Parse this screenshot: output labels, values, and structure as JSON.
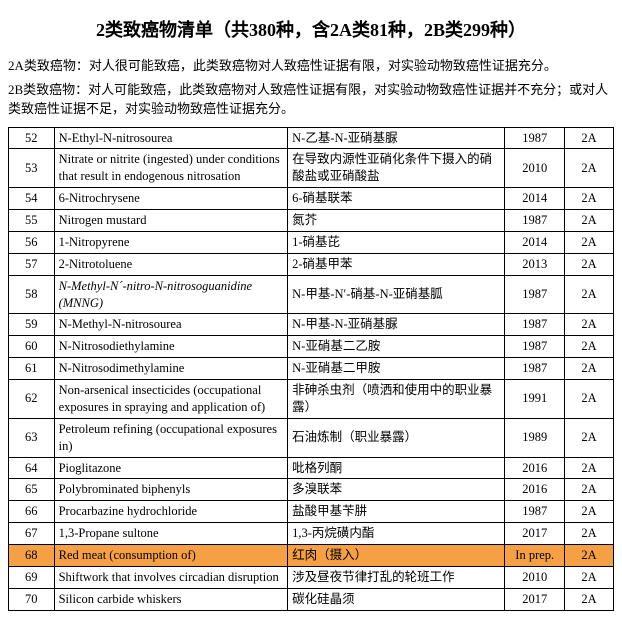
{
  "title": "2类致癌物清单（共380种，含2A类81种，2B类299种）",
  "intro": [
    "2A类致癌物：对人很可能致癌，此类致癌物对人致癌性证据有限，对实验动物致癌性证据充分。",
    "2B类致癌物：对人可能致癌，此类致癌物对人致癌性证据有限，对实验动物致癌性证据并不充分；或对人类致癌性证据不足，对实验动物致癌性证据充分。"
  ],
  "highlight_color": "#f5a044",
  "rows": [
    {
      "id": "52",
      "en": "N-Ethyl-N-nitrosourea",
      "cn": "N-乙基-N-亚硝基脲",
      "year": "1987",
      "cls": "2A",
      "hl": false,
      "it": false
    },
    {
      "id": "53",
      "en": "Nitrate or nitrite (ingested) under conditions that result in endogenous nitrosation",
      "cn": "在导致内源性亚硝化条件下摄入的硝酸盐或亚硝酸盐",
      "year": "2010",
      "cls": "2A",
      "hl": false,
      "it": false
    },
    {
      "id": "54",
      "en": "6-Nitrochrysene",
      "cn": "6-硝基联苯",
      "year": "2014",
      "cls": "2A",
      "hl": false,
      "it": false
    },
    {
      "id": "55",
      "en": "Nitrogen mustard",
      "cn": "氮芥",
      "year": "1987",
      "cls": "2A",
      "hl": false,
      "it": false
    },
    {
      "id": "56",
      "en": "1-Nitropyrene",
      "cn": "1-硝基芘",
      "year": "2014",
      "cls": "2A",
      "hl": false,
      "it": false
    },
    {
      "id": "57",
      "en": "2-Nitrotoluene",
      "cn": "2-硝基甲苯",
      "year": "2013",
      "cls": "2A",
      "hl": false,
      "it": false
    },
    {
      "id": "58",
      "en": "N-Methyl-N´-nitro-N-nitrosoguanidine (MNNG)",
      "cn": "N-甲基-N′-硝基-N-亚硝基胍",
      "year": "1987",
      "cls": "2A",
      "hl": false,
      "it": true
    },
    {
      "id": "59",
      "en": "N-Methyl-N-nitrosourea",
      "cn": "N-甲基-N-亚硝基脲",
      "year": "1987",
      "cls": "2A",
      "hl": false,
      "it": false
    },
    {
      "id": "60",
      "en": "N-Nitrosodiethylamine",
      "cn": "N-亚硝基二乙胺",
      "year": "1987",
      "cls": "2A",
      "hl": false,
      "it": false
    },
    {
      "id": "61",
      "en": "N-Nitrosodimethylamine",
      "cn": "N-亚硝基二甲胺",
      "year": "1987",
      "cls": "2A",
      "hl": false,
      "it": false
    },
    {
      "id": "62",
      "en": "Non-arsenical insecticides (occupational exposures in spraying and application of)",
      "cn": "非砷杀虫剂（喷洒和使用中的职业暴露）",
      "year": "1991",
      "cls": "2A",
      "hl": false,
      "it": false
    },
    {
      "id": "63",
      "en": "Petroleum refining (occupational exposures in)",
      "cn": "石油炼制（职业暴露）",
      "year": "1989",
      "cls": "2A",
      "hl": false,
      "it": false
    },
    {
      "id": "64",
      "en": "Pioglitazone",
      "cn": "吡格列酮",
      "year": "2016",
      "cls": "2A",
      "hl": false,
      "it": false
    },
    {
      "id": "65",
      "en": "Polybrominated biphenyls",
      "cn": "多溴联苯",
      "year": "2016",
      "cls": "2A",
      "hl": false,
      "it": false
    },
    {
      "id": "66",
      "en": "Procarbazine hydrochloride",
      "cn": "盐酸甲基苄肼",
      "year": "1987",
      "cls": "2A",
      "hl": false,
      "it": false
    },
    {
      "id": "67",
      "en": "1,3-Propane sultone",
      "cn": "1,3-丙烷磺内酯",
      "year": "2017",
      "cls": "2A",
      "hl": false,
      "it": false
    },
    {
      "id": "68",
      "en": "Red meat (consumption of)",
      "cn": "红肉（摄入）",
      "year": "In prep.",
      "cls": "2A",
      "hl": true,
      "it": false
    },
    {
      "id": "69",
      "en": "Shiftwork that involves circadian disruption",
      "cn": "涉及昼夜节律打乱的轮班工作",
      "year": "2010",
      "cls": "2A",
      "hl": false,
      "it": false
    },
    {
      "id": "70",
      "en": "Silicon carbide whiskers",
      "cn": "碳化硅晶须",
      "year": "2017",
      "cls": "2A",
      "hl": false,
      "it": false
    }
  ]
}
